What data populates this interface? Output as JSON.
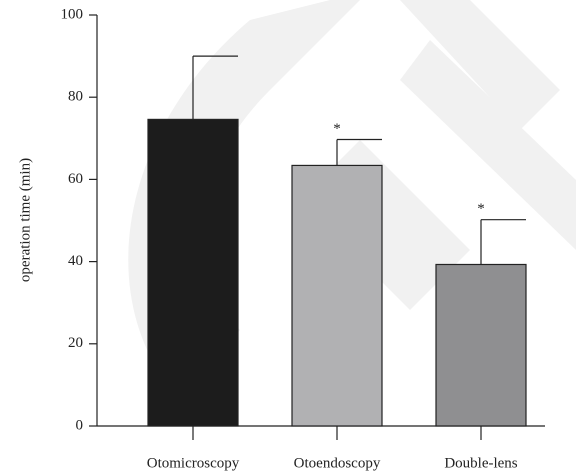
{
  "chart_data": {
    "type": "bar",
    "ylabel": "operation time (min)",
    "categories": [
      "Otomicroscopy",
      "Otoendoscopy",
      "Double-lens"
    ],
    "values": [
      74.6,
      63.4,
      39.3
    ],
    "errors": [
      15.4,
      6.3,
      10.9
    ],
    "annotations": [
      null,
      "*",
      "*"
    ],
    "colors": [
      "#1c1c1c",
      "#b1b1b3",
      "#8f8f91"
    ],
    "ylim": [
      0,
      100
    ],
    "yticks": [
      0,
      20,
      40,
      60,
      80,
      100
    ],
    "grid": false
  }
}
